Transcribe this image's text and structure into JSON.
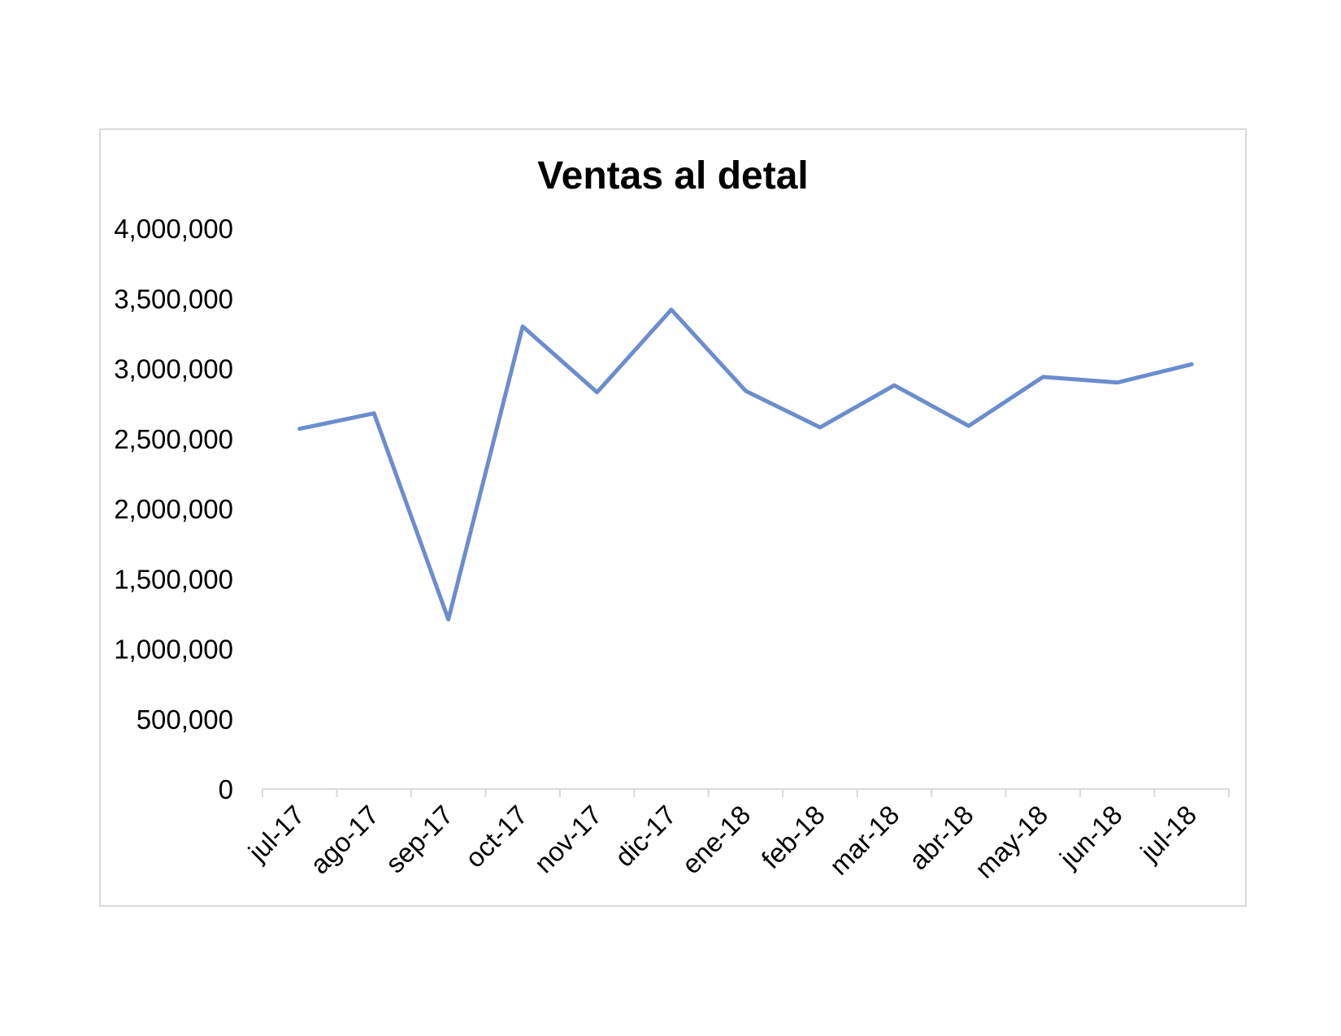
{
  "chart_data": {
    "type": "line",
    "title": "Ventas al detal",
    "xlabel": "",
    "ylabel": "",
    "categories": [
      "jul-17",
      "ago-17",
      "sep-17",
      "oct-17",
      "nov-17",
      "dic-17",
      "ene-18",
      "feb-18",
      "mar-18",
      "abr-18",
      "may-18",
      "jun-18",
      "jul-18"
    ],
    "series": [
      {
        "values": [
          2570000,
          2680000,
          1210000,
          3300000,
          2830000,
          3420000,
          2840000,
          2580000,
          2880000,
          2590000,
          2940000,
          2900000,
          3030000
        ],
        "color": "#6b8dcf"
      }
    ],
    "ylim": [
      0,
      4000000
    ],
    "yticks": [
      "0",
      "500,000",
      "1,000,000",
      "1,500,000",
      "2,000,000",
      "2,500,000",
      "3,000,000",
      "3,500,000",
      "4,000,000"
    ],
    "grid": false,
    "legend": "none"
  },
  "colors": {
    "line": "#6b8dcf",
    "axis": "#d9d9d9",
    "frame": "#d9d9d9"
  }
}
